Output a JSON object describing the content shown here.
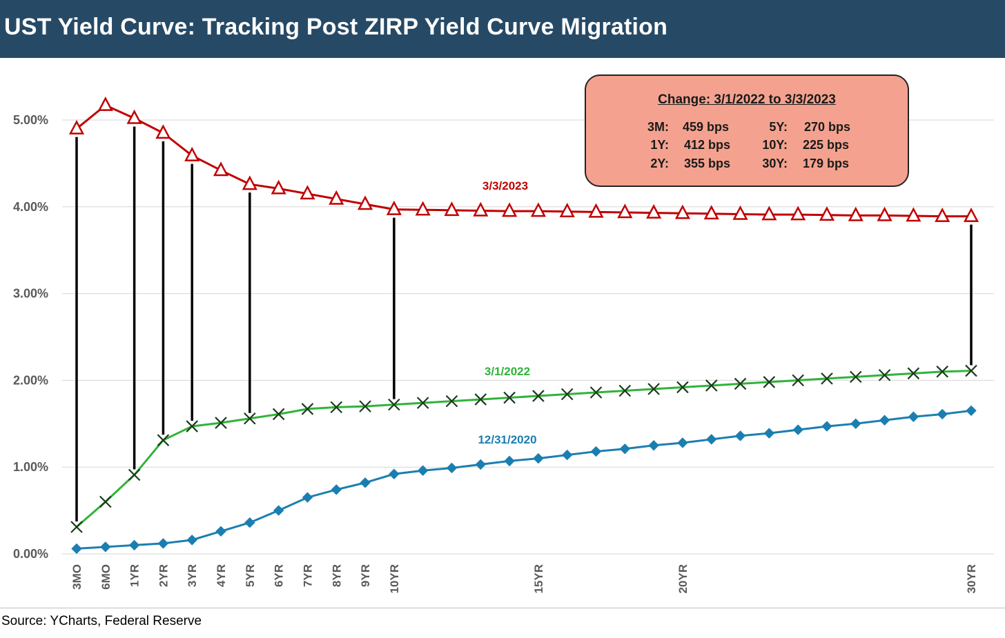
{
  "header": {
    "title": "UST Yield Curve: Tracking Post ZIRP Yield Curve Migration"
  },
  "footer": {
    "source": "Source: YCharts, Federal Reserve"
  },
  "change_box": {
    "title": "Change: 3/1/2022 to 3/3/2023",
    "rows": [
      {
        "left_term": "3M:",
        "left_value": "459 bps",
        "right_term": "5Y:",
        "right_value": "270 bps"
      },
      {
        "left_term": "1Y:",
        "left_value": "412 bps",
        "right_term": "10Y:",
        "right_value": "225 bps"
      },
      {
        "left_term": "2Y:",
        "left_value": "355 bps",
        "right_term": "30Y:",
        "right_value": "179 bps"
      }
    ]
  },
  "chart_data": {
    "type": "line",
    "title": "UST Yield Curve: Tracking Post ZIRP Yield Curve Migration",
    "x": [
      0.25,
      0.5,
      1,
      2,
      3,
      4,
      5,
      6,
      7,
      8,
      9,
      10,
      11,
      12,
      13,
      14,
      15,
      16,
      17,
      18,
      19,
      20,
      21,
      22,
      23,
      24,
      25,
      26,
      27,
      28,
      29,
      30
    ],
    "x_tick_labels": [
      "3MO",
      "6MO",
      "1YR",
      "2YR",
      "3YR",
      "4YR",
      "5YR",
      "6YR",
      "7YR",
      "8YR",
      "9YR",
      "10YR",
      "",
      "",
      "",
      "",
      "15YR",
      "",
      "",
      "",
      "",
      "20YR",
      "",
      "",
      "",
      "",
      "",
      "",
      "",
      "",
      "",
      "30YR"
    ],
    "ylim": [
      0,
      5.5
    ],
    "y_ticks": [
      0,
      1,
      2,
      3,
      4,
      5
    ],
    "y_tick_labels": [
      "0.00%",
      "1.00%",
      "2.00%",
      "3.00%",
      "4.00%",
      "5.00%"
    ],
    "grid": true,
    "series": [
      {
        "name": "3/3/2023",
        "color": "#c00000",
        "marker": "triangle-open",
        "values": [
          4.9,
          5.17,
          5.02,
          4.85,
          4.59,
          4.42,
          4.26,
          4.21,
          4.15,
          4.09,
          4.03,
          3.97,
          3.965,
          3.96,
          3.955,
          3.95,
          3.95,
          3.945,
          3.94,
          3.935,
          3.93,
          3.925,
          3.92,
          3.915,
          3.91,
          3.91,
          3.905,
          3.9,
          3.9,
          3.895,
          3.89,
          3.89
        ]
      },
      {
        "name": "3/1/2022",
        "color": "#2fb33a",
        "marker": "x",
        "values": [
          0.31,
          0.6,
          0.91,
          1.31,
          1.47,
          1.51,
          1.56,
          1.61,
          1.67,
          1.69,
          1.7,
          1.72,
          1.74,
          1.76,
          1.78,
          1.8,
          1.82,
          1.84,
          1.86,
          1.88,
          1.9,
          1.92,
          1.94,
          1.96,
          1.98,
          2.0,
          2.02,
          2.04,
          2.06,
          2.08,
          2.1,
          2.11
        ]
      },
      {
        "name": "12/31/2020",
        "color": "#1a7fb0",
        "marker": "diamond",
        "values": [
          0.06,
          0.08,
          0.1,
          0.12,
          0.16,
          0.26,
          0.36,
          0.5,
          0.65,
          0.74,
          0.82,
          0.92,
          0.96,
          0.99,
          1.03,
          1.07,
          1.1,
          1.14,
          1.18,
          1.21,
          1.25,
          1.28,
          1.32,
          1.36,
          1.39,
          1.43,
          1.47,
          1.5,
          1.54,
          1.58,
          1.61,
          1.65
        ]
      }
    ],
    "change_connectors_at_x": [
      0.25,
      1,
      2,
      3,
      5,
      10,
      30
    ]
  }
}
